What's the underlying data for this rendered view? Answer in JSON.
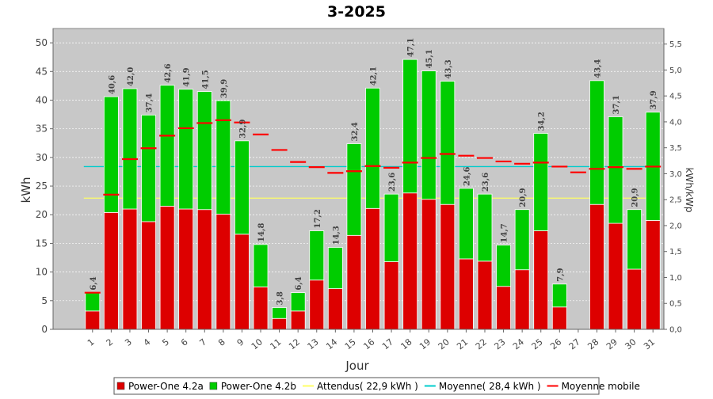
{
  "chart_data": {
    "type": "bar",
    "stacked": true,
    "title": "3-2025",
    "xlabel": "Jour",
    "ylabel": "kWh",
    "y2label": "kWh/kWp",
    "ylim": [
      0,
      52.5
    ],
    "y2lim": [
      0,
      5.8
    ],
    "y_ticks": [
      "0",
      "5",
      "10",
      "15",
      "20",
      "25",
      "30",
      "35",
      "40",
      "45",
      "50"
    ],
    "y2_ticks": [
      "0,0",
      "0,5",
      "1,0",
      "1,5",
      "2,0",
      "2,5",
      "3,0",
      "3,5",
      "4,0",
      "4,5",
      "5,0",
      "5,5"
    ],
    "grid": true,
    "legend_position": "bottom",
    "background": "#c8c8c8",
    "categories": [
      "1",
      "2",
      "3",
      "4",
      "5",
      "6",
      "7",
      "8",
      "9",
      "10",
      "11",
      "12",
      "13",
      "14",
      "15",
      "16",
      "17",
      "18",
      "19",
      "20",
      "21",
      "22",
      "23",
      "24",
      "25",
      "26",
      "27",
      "28",
      "29",
      "30",
      "31"
    ],
    "totals": [
      6.4,
      40.6,
      42.0,
      37.4,
      42.6,
      41.9,
      41.5,
      39.9,
      32.9,
      14.8,
      3.8,
      6.4,
      17.2,
      14.3,
      32.4,
      42.1,
      23.6,
      47.1,
      45.1,
      43.3,
      24.6,
      23.6,
      14.7,
      20.9,
      34.2,
      7.9,
      null,
      43.4,
      37.1,
      20.9,
      37.9
    ],
    "total_labels": [
      "6,4",
      "40,6",
      "42,0",
      "37,4",
      "42,6",
      "41,9",
      "41,5",
      "39,9",
      "32,9",
      "14,8",
      "3,8",
      "6,4",
      "17,2",
      "14,3",
      "32,4",
      "42,1",
      "23,6",
      "47,1",
      "45,1",
      "43,3",
      "24,6",
      "23,6",
      "14,7",
      "20,9",
      "34,2",
      "7,9",
      "",
      "43,4",
      "37,1",
      "20,9",
      "37,9"
    ],
    "series": [
      {
        "name": "Power-One 4.2a",
        "color": "#dd0000",
        "values": [
          3.2,
          20.4,
          21.0,
          18.8,
          21.5,
          21.0,
          20.9,
          20.1,
          16.6,
          7.4,
          1.9,
          3.2,
          8.6,
          7.1,
          16.4,
          21.1,
          11.8,
          23.8,
          22.7,
          21.8,
          12.3,
          11.9,
          7.5,
          10.4,
          17.2,
          3.9,
          0,
          21.8,
          18.5,
          10.5,
          19.0
        ]
      },
      {
        "name": "Power-One 4.2b",
        "color": "#00cc00",
        "values": [
          3.2,
          20.2,
          21.0,
          18.6,
          21.1,
          20.9,
          20.6,
          19.8,
          16.3,
          7.4,
          1.9,
          3.2,
          8.6,
          7.2,
          16.0,
          21.0,
          11.8,
          23.3,
          22.4,
          21.5,
          12.3,
          11.7,
          7.2,
          10.5,
          17.0,
          4.0,
          0,
          21.6,
          18.6,
          10.4,
          18.9
        ]
      }
    ],
    "reference_lines": [
      {
        "name": "Attendus( 22,9 kWh )",
        "value": 22.9,
        "color": "#ffff66"
      },
      {
        "name": "Moyenne( 28,4 kWh )",
        "value": 28.4,
        "color": "#00cccc"
      }
    ],
    "moving_average": {
      "name": "Moyenne mobile",
      "color": "#ff0000",
      "values": [
        6.4,
        23.5,
        29.7,
        31.6,
        33.8,
        35.1,
        36.0,
        36.5,
        36.1,
        34.0,
        31.3,
        29.2,
        28.3,
        27.3,
        27.6,
        28.5,
        28.2,
        29.1,
        29.9,
        30.6,
        30.3,
        29.9,
        29.3,
        28.9,
        29.1,
        28.4,
        27.4,
        28.0,
        28.3,
        28.0,
        28.4
      ]
    }
  }
}
